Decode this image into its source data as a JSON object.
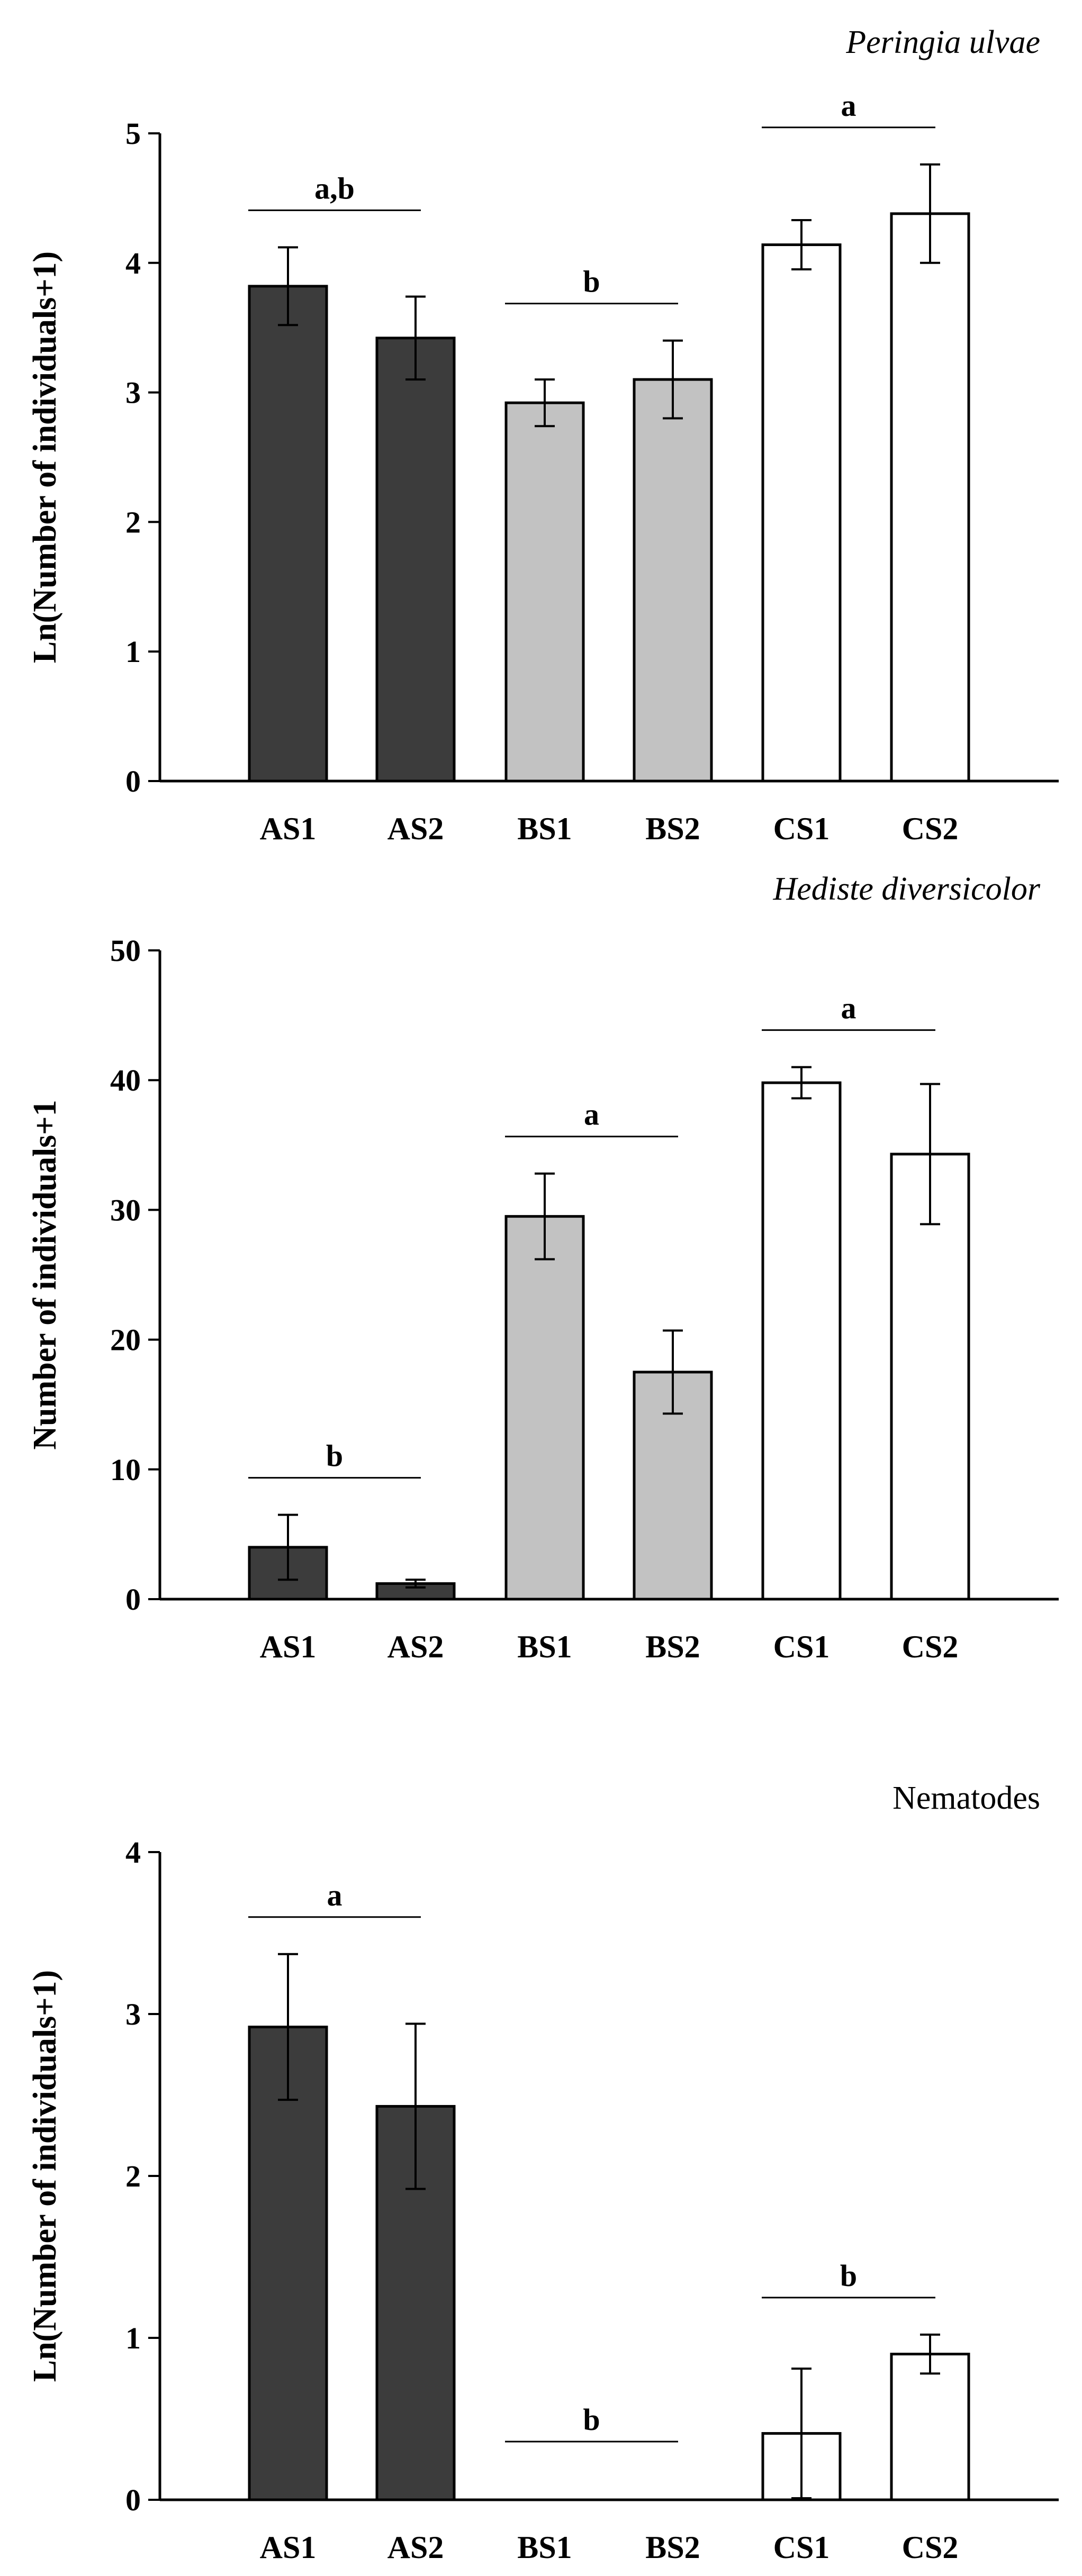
{
  "colors": {
    "A": "#3c3c3c",
    "B": "#c2c2c2",
    "C": "#ffffff"
  },
  "chart_data": [
    {
      "type": "bar",
      "title": "Peringia ulvae",
      "title_style": "italic",
      "ylabel": "Ln(Number of individuals+1)",
      "xlabel": "",
      "categories": [
        "AS1",
        "AS2",
        "BS1",
        "BS2",
        "CS1",
        "CS2"
      ],
      "groups": [
        "A",
        "A",
        "B",
        "B",
        "C",
        "C"
      ],
      "values": [
        3.82,
        3.42,
        2.92,
        3.1,
        4.14,
        4.38
      ],
      "errors": [
        0.3,
        0.32,
        0.18,
        0.3,
        0.19,
        0.38
      ],
      "ylim": [
        0,
        5
      ],
      "yticks": [
        0,
        1,
        2,
        3,
        4,
        5
      ],
      "ytick_labels": [
        "0",
        "1",
        "2",
        "3",
        "4",
        "5"
      ],
      "significance": [
        {
          "label": "a,b",
          "from": 0,
          "to": 1
        },
        {
          "label": "b",
          "from": 2,
          "to": 3
        },
        {
          "label": "a",
          "from": 4,
          "to": 5
        }
      ]
    },
    {
      "type": "bar",
      "title": "Hediste diversicolor",
      "title_style": "italic",
      "ylabel": "Number of individuals+1",
      "xlabel": "",
      "categories": [
        "AS1",
        "AS2",
        "BS1",
        "BS2",
        "CS1",
        "CS2"
      ],
      "groups": [
        "A",
        "A",
        "B",
        "B",
        "C",
        "C"
      ],
      "values": [
        4.0,
        1.2,
        29.5,
        17.5,
        39.8,
        34.3
      ],
      "errors": [
        2.5,
        0.3,
        3.3,
        3.2,
        1.2,
        5.4
      ],
      "ylim": [
        0,
        50
      ],
      "yticks": [
        0,
        10,
        20,
        30,
        40,
        50
      ],
      "ytick_labels": [
        "0",
        "10",
        "20",
        "30",
        "40",
        "50"
      ],
      "significance": [
        {
          "label": "b",
          "from": 0,
          "to": 1
        },
        {
          "label": "a",
          "from": 2,
          "to": 3
        },
        {
          "label": "a",
          "from": 4,
          "to": 5
        }
      ]
    },
    {
      "type": "bar",
      "title": "Nematodes",
      "title_style": "normal",
      "ylabel": "Ln(Number of individuals+1)",
      "xlabel": "",
      "categories": [
        "AS1",
        "AS2",
        "BS1",
        "BS2",
        "CS1",
        "CS2"
      ],
      "groups": [
        "A",
        "A",
        "B",
        "B",
        "C",
        "C"
      ],
      "values": [
        2.92,
        2.43,
        0,
        0,
        0.41,
        0.9
      ],
      "errors": [
        0.45,
        0.51,
        0,
        0,
        0.4,
        0.12
      ],
      "ylim": [
        0,
        4
      ],
      "yticks": [
        0,
        1,
        2,
        3,
        4
      ],
      "ytick_labels": [
        "0",
        "1",
        "2",
        "3",
        "4"
      ],
      "significance": [
        {
          "label": "a",
          "from": 0,
          "to": 1
        },
        {
          "label": "b",
          "from": 2,
          "to": 3
        },
        {
          "label": "b",
          "from": 4,
          "to": 5
        }
      ]
    }
  ]
}
